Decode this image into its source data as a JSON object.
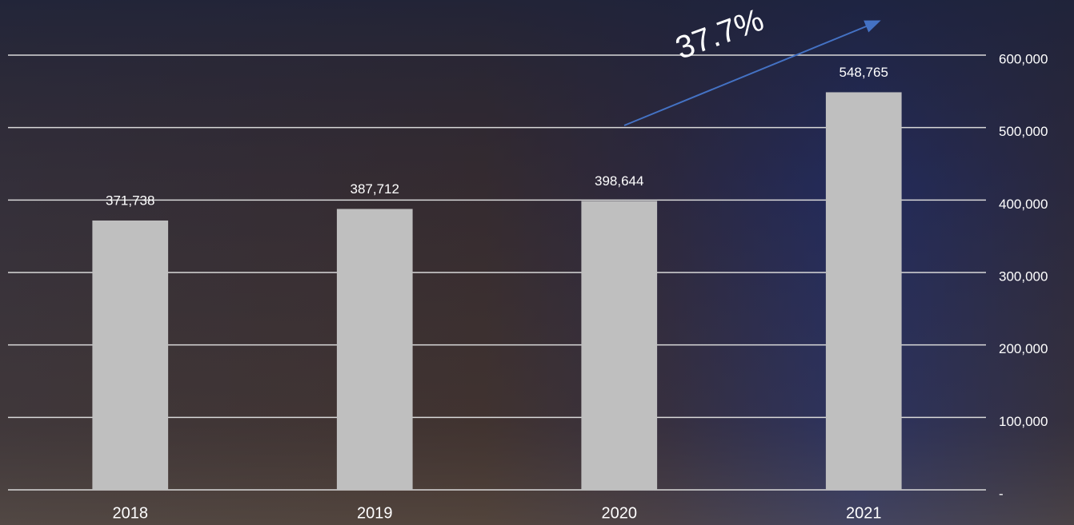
{
  "chart_data": {
    "type": "bar",
    "annotation": "37.7%",
    "categories": [
      "2018",
      "2019",
      "2020",
      "2021"
    ],
    "values": [
      371738,
      387712,
      398644,
      548765
    ],
    "value_labels": [
      "371,738",
      "387,712",
      "398,644",
      "548,765"
    ],
    "color": "#bfbfbf",
    "ylim": [
      0,
      600000
    ],
    "yticks": [
      {
        "value": 0,
        "label": "-"
      },
      {
        "value": 100000,
        "label": "100,000"
      },
      {
        "value": 200000,
        "label": "200,000"
      },
      {
        "value": 300000,
        "label": "300,000"
      },
      {
        "value": 400000,
        "label": "400,000"
      },
      {
        "value": 500000,
        "label": "500,000"
      },
      {
        "value": 600000,
        "label": "600,000"
      }
    ],
    "y_axis_side": "right",
    "grid": true
  }
}
